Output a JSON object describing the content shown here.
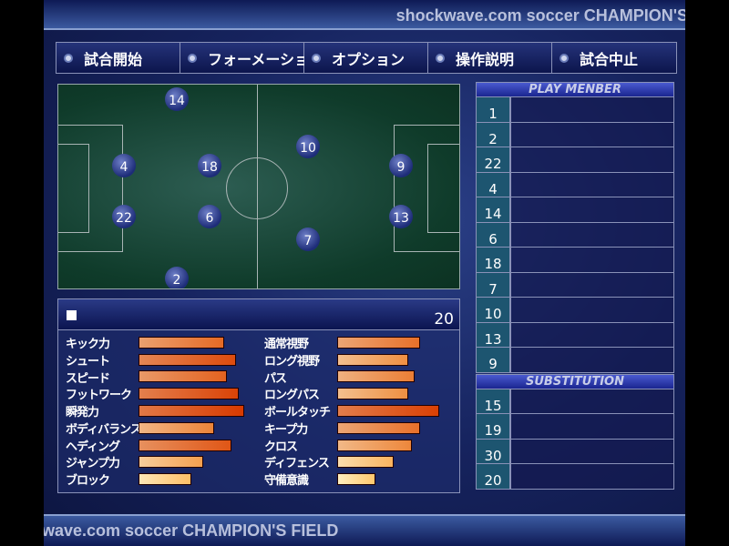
{
  "header": {
    "title": "shockwave.com soccer CHAMPION'S FIELD"
  },
  "footer": {
    "title": "wave.com soccer CHAMPION'S FIELD"
  },
  "menu": [
    {
      "label": "試合開始"
    },
    {
      "label": "フォーメーション"
    },
    {
      "label": "オプション"
    },
    {
      "label": "操作説明"
    },
    {
      "label": "試合中止"
    }
  ],
  "pitch": {
    "players": [
      "14",
      "4",
      "18",
      "10",
      "9",
      "22",
      "6",
      "13",
      "7",
      "2"
    ]
  },
  "stats": {
    "player_number": "20",
    "left": [
      {
        "label": "キック力",
        "level": 78
      },
      {
        "label": "シュート",
        "level": 89
      },
      {
        "label": "スピード",
        "level": 81
      },
      {
        "label": "フットワーク",
        "level": 92
      },
      {
        "label": "瞬発力",
        "level": 97
      },
      {
        "label": "ボディバランス",
        "level": 69
      },
      {
        "label": "ヘディング",
        "level": 85
      },
      {
        "label": "ジャンプ力",
        "level": 59
      },
      {
        "label": "ブロック",
        "level": 48
      }
    ],
    "right": [
      {
        "label": "通常視野",
        "level": 76
      },
      {
        "label": "ロング視野",
        "level": 65
      },
      {
        "label": "パス",
        "level": 71
      },
      {
        "label": "ロングパス",
        "level": 65
      },
      {
        "label": "ボールタッチ",
        "level": 93
      },
      {
        "label": "キープ力",
        "level": 76
      },
      {
        "label": "クロス",
        "level": 68
      },
      {
        "label": "ディフェンス",
        "level": 52
      },
      {
        "label": "守備意識",
        "level": 35
      }
    ]
  },
  "members": {
    "title": "PLAY MENBER",
    "numbers": [
      "1",
      "2",
      "22",
      "4",
      "14",
      "6",
      "18",
      "7",
      "10",
      "13",
      "9"
    ]
  },
  "substitution": {
    "title": "SUBSTITUTION",
    "numbers": [
      "15",
      "19",
      "30",
      "20"
    ]
  },
  "colors": {
    "bar_low": "#ffeeb8",
    "bar_high": "#d83a00",
    "number_cell": "#1d5570"
  }
}
